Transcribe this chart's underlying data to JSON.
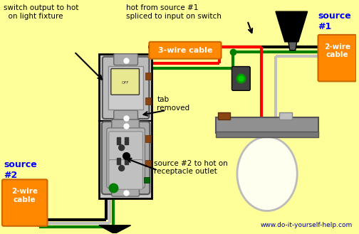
{
  "bg_color": "#FFFF99",
  "colors": {
    "black": "#000000",
    "red": "#FF0000",
    "green": "#008000",
    "white": "#FFFFFF",
    "gray": "#808080",
    "orange": "#FF8800",
    "blue": "#0000FF",
    "light_gray": "#C0C0C0",
    "dark_gray": "#909090",
    "outlet_gray": "#AAAAAA",
    "brown": "#8B4513",
    "cream": "#FFFFD0"
  },
  "labels": {
    "switch_output": "switch output to hot\n  on light fixture",
    "hot_from_source": "hot from source #1\nspliced to input on switch",
    "source1_title": "source\n#1",
    "two_wire_cable1": "2-wire\ncable",
    "three_wire_cable": "3-wire cable",
    "tab_removed": "tab\nremoved",
    "source2_title": "source\n#2",
    "two_wire_cable2": "2-wire\ncable",
    "source2_to_hot": "source #2 to hot on\nreceptacle outlet",
    "website_text": "www.do-it-yourself-help.com"
  }
}
